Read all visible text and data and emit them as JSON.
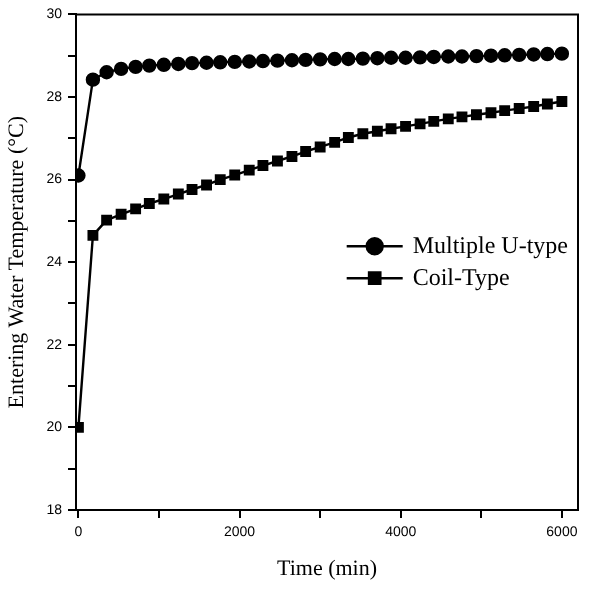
{
  "chart_data": {
    "type": "line",
    "xlabel": "Time (min)",
    "ylabel": "Entering Water Temperature (°C)",
    "x": [
      0,
      180,
      350,
      530,
      710,
      880,
      1060,
      1240,
      1410,
      1590,
      1760,
      1940,
      2120,
      2290,
      2470,
      2650,
      2820,
      3000,
      3180,
      3350,
      3530,
      3710,
      3880,
      4060,
      4240,
      4410,
      4590,
      4760,
      4940,
      5120,
      5290,
      5470,
      5650,
      5820,
      6000
    ],
    "series": [
      {
        "name": "Multiple U-type",
        "color": "#000000",
        "marker": "circle",
        "values": [
          26.1,
          28.42,
          28.6,
          28.68,
          28.73,
          28.76,
          28.78,
          28.8,
          28.82,
          28.83,
          28.84,
          28.85,
          28.86,
          28.87,
          28.88,
          28.89,
          28.9,
          28.91,
          28.92,
          28.92,
          28.93,
          28.94,
          28.95,
          28.95,
          28.96,
          28.97,
          28.98,
          28.98,
          28.99,
          29.0,
          29.01,
          29.02,
          29.03,
          29.04,
          29.05
        ]
      },
      {
        "name": "Coil-Type",
        "color": "#000000",
        "marker": "square",
        "values": [
          20.0,
          24.65,
          25.02,
          25.16,
          25.29,
          25.42,
          25.53,
          25.65,
          25.76,
          25.87,
          26.0,
          26.11,
          26.23,
          26.34,
          26.45,
          26.56,
          26.68,
          26.79,
          26.9,
          27.02,
          27.11,
          27.17,
          27.23,
          27.29,
          27.35,
          27.41,
          27.47,
          27.52,
          27.57,
          27.62,
          27.67,
          27.72,
          27.77,
          27.83,
          27.89
        ]
      }
    ],
    "xlim": [
      -30,
      6200
    ],
    "xticks": [
      0,
      {
        "value": 1000,
        "label": null
      },
      2000,
      {
        "value": 3000,
        "label": null
      },
      4000,
      {
        "value": 5000,
        "label": null
      },
      6000
    ],
    "ylim": [
      18,
      30
    ],
    "yticks": [
      18,
      {
        "value": 19,
        "label": null
      },
      20,
      {
        "value": 21,
        "label": null
      },
      22,
      {
        "value": 23,
        "label": null
      },
      24,
      {
        "value": 25,
        "label": null
      },
      26,
      {
        "value": 27,
        "label": null
      },
      28,
      {
        "value": 29,
        "label": null
      },
      30
    ],
    "grid": false,
    "legend": "right",
    "line_style": "solid"
  }
}
